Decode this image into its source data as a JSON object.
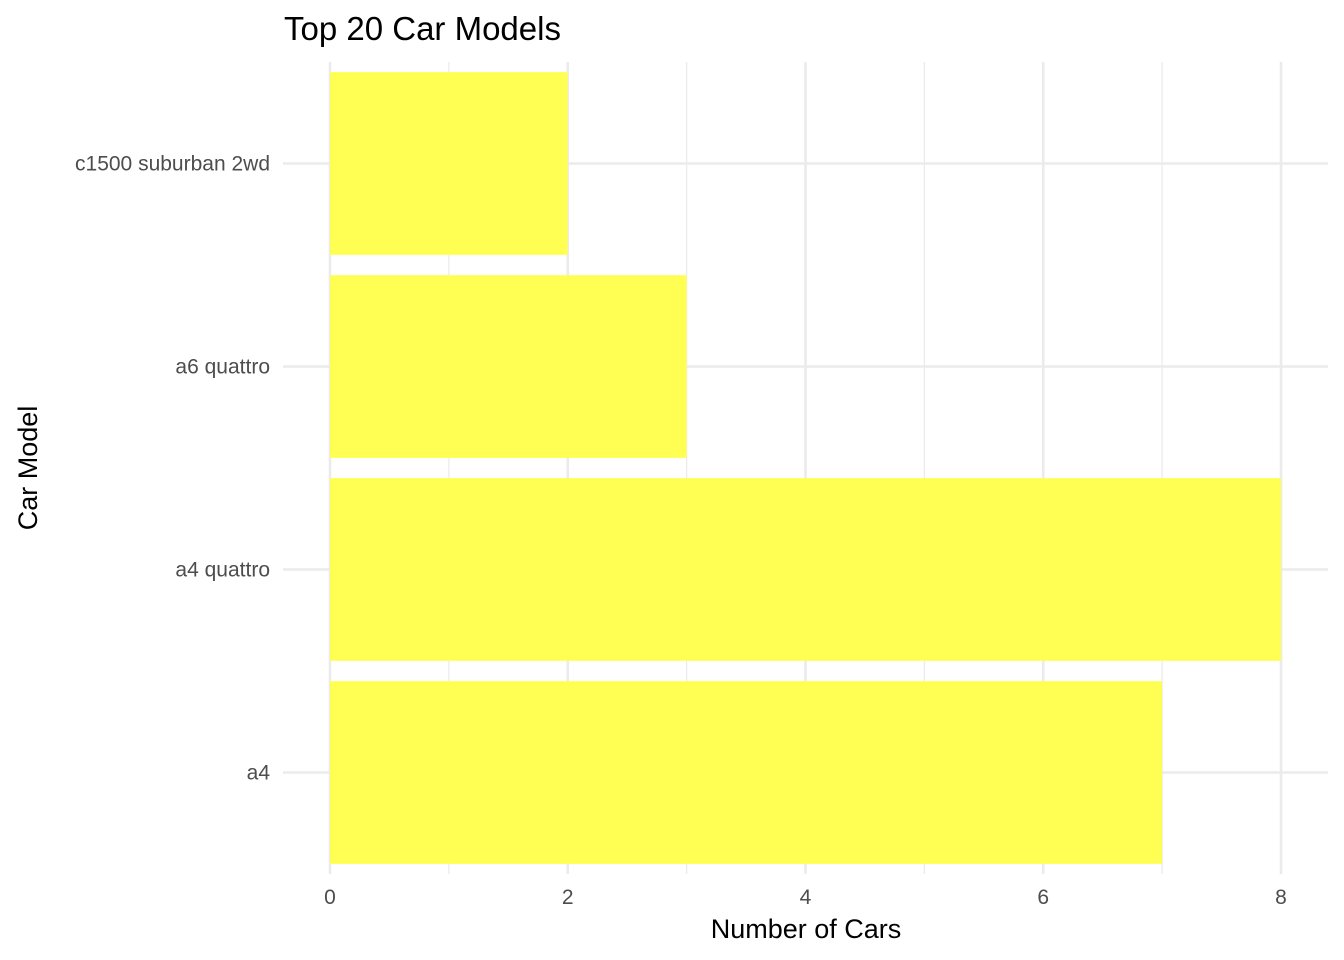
{
  "chart_data": {
    "type": "bar",
    "orientation": "horizontal",
    "title": "Top 20 Car Models",
    "xlabel": "Number of Cars",
    "ylabel": "Car Model",
    "categories": [
      "a4",
      "a4 quattro",
      "a6 quattro",
      "c1500 suburban 2wd"
    ],
    "values": [
      7,
      8,
      3,
      2
    ],
    "xlim": [
      0,
      8
    ],
    "xticks": [
      0,
      2,
      4,
      6,
      8
    ],
    "grid": true,
    "legend": "none",
    "bar_color": "#ffff4d"
  }
}
